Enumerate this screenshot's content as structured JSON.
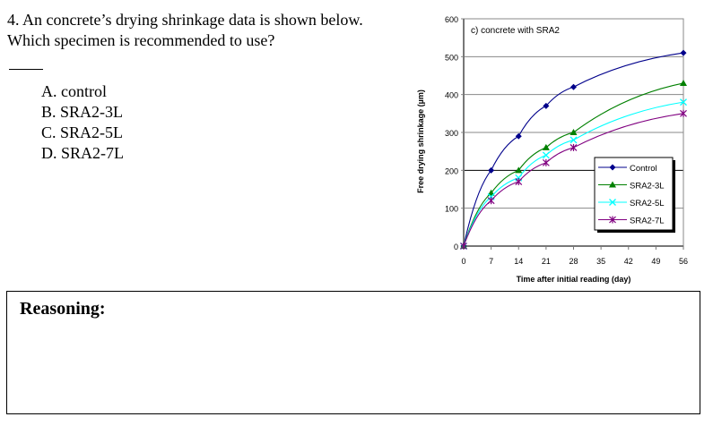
{
  "question": {
    "number": "4.",
    "text": "4. An concrete’s drying shrinkage data is shown below. Which specimen is recommended to use?",
    "answer_blank": "____",
    "options": [
      {
        "label": "A. control"
      },
      {
        "label": "B. SRA2-3L"
      },
      {
        "label": "C. SRA2-5L"
      },
      {
        "label": "D. SRA2-7L"
      }
    ]
  },
  "reasoning": {
    "label": "Reasoning:",
    "value": ""
  },
  "chart_data": {
    "type": "line",
    "title": "c) concrete with SRA2",
    "xlabel": "Time after initial reading (day)",
    "ylabel": "Free drying shrinkage (µm)",
    "x": [
      0,
      7,
      14,
      21,
      28,
      56
    ],
    "xticks": [
      "0",
      "7",
      "14",
      "21",
      "28",
      "35",
      "42",
      "49",
      "56"
    ],
    "yticks": [
      "0",
      "100",
      "200",
      "300",
      "400",
      "500",
      "600"
    ],
    "xlim": [
      0,
      56
    ],
    "ylim": [
      0,
      600
    ],
    "grid": "horizontal",
    "legend_position": "inside-right",
    "series": [
      {
        "name": "Control",
        "color": "#00008b",
        "marker": "diamond",
        "values": [
          0,
          200,
          290,
          370,
          420,
          510
        ]
      },
      {
        "name": "SRA2-3L",
        "color": "#008000",
        "marker": "triangle",
        "values": [
          0,
          140,
          200,
          260,
          300,
          430
        ]
      },
      {
        "name": "SRA2-5L",
        "color": "#00ffff",
        "marker": "x",
        "values": [
          0,
          130,
          180,
          240,
          280,
          380
        ]
      },
      {
        "name": "SRA2-7L",
        "color": "#800080",
        "marker": "star",
        "values": [
          0,
          120,
          170,
          220,
          260,
          350
        ]
      }
    ]
  }
}
